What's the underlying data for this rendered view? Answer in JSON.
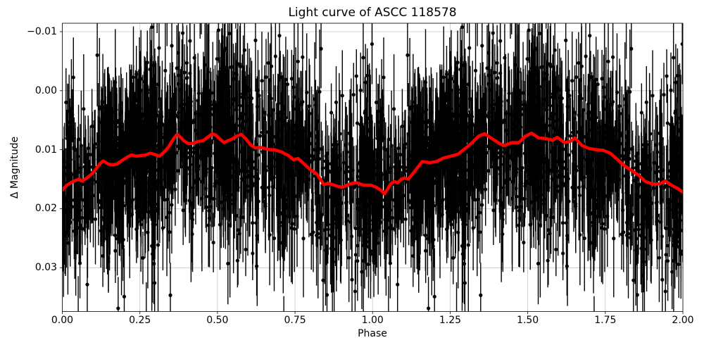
{
  "chart_data": {
    "type": "scatter",
    "title": "Light curve of ASCC 118578",
    "xlabel": "Phase",
    "ylabel": "Δ Magnitude",
    "x_ticks": [
      "0.00",
      "0.25",
      "0.50",
      "0.75",
      "1.00",
      "1.25",
      "1.50",
      "1.75",
      "2.00"
    ],
    "x_tick_values": [
      0,
      0.25,
      0.5,
      0.75,
      1.0,
      1.25,
      1.5,
      1.75,
      2.0
    ],
    "y_ticks": [
      "−0.01",
      "0.00",
      "0.01",
      "0.02",
      "0.03"
    ],
    "y_tick_values": [
      -0.01,
      0.0,
      0.01,
      0.02,
      0.03
    ],
    "xlim": [
      0,
      2
    ],
    "ylim": {
      "top": -0.01143,
      "bottom": 0.03742
    },
    "y_axis_inverted": true,
    "grid": true,
    "legend": "none",
    "colors": {
      "scatter": "#000000",
      "mean_curve": "#ff0000",
      "grid": "#c6c6c6",
      "spine": "#000000",
      "background": "#ffffff",
      "text": "#000000"
    },
    "mean_curve": {
      "comment": "phase-folded running-mean light curve, duplicated over two cycles, values read from plot",
      "phase": [
        0.0,
        0.015,
        0.034,
        0.053,
        0.064,
        0.079,
        0.098,
        0.121,
        0.132,
        0.147,
        0.162,
        0.177,
        0.193,
        0.208,
        0.223,
        0.238,
        0.253,
        0.268,
        0.283,
        0.298,
        0.313,
        0.328,
        0.343,
        0.359,
        0.37,
        0.381,
        0.392,
        0.407,
        0.422,
        0.438,
        0.453,
        0.468,
        0.483,
        0.494,
        0.506,
        0.521,
        0.532,
        0.547,
        0.562,
        0.577,
        0.592,
        0.607,
        0.623,
        0.638,
        0.653,
        0.668,
        0.684,
        0.707,
        0.729,
        0.745,
        0.76,
        0.775,
        0.797,
        0.82,
        0.843,
        0.858,
        0.881,
        0.903,
        0.926,
        0.949,
        0.971,
        0.994,
        1.013,
        1.03,
        1.038,
        1.047,
        1.058,
        1.07,
        1.081,
        1.092,
        1.104,
        1.115,
        1.138,
        1.16,
        1.183,
        1.206,
        1.229,
        1.252,
        1.274,
        1.296,
        1.319,
        1.342,
        1.361,
        1.387,
        1.41,
        1.425,
        1.448,
        1.471,
        1.493,
        1.512,
        1.535,
        1.557,
        1.58,
        1.595,
        1.618,
        1.637,
        1.652,
        1.675,
        1.698,
        1.72,
        1.743,
        1.766,
        1.788,
        1.811,
        1.834,
        1.857,
        1.879,
        1.902,
        1.925,
        1.943,
        1.966,
        1.984,
        2.0
      ],
      "dmag": [
        0.0168,
        0.016,
        0.0154,
        0.015,
        0.0153,
        0.0148,
        0.014,
        0.0124,
        0.0119,
        0.0124,
        0.0126,
        0.0124,
        0.0118,
        0.0113,
        0.0109,
        0.0111,
        0.011,
        0.0109,
        0.0106,
        0.0108,
        0.0111,
        0.0104,
        0.0095,
        0.0081,
        0.0074,
        0.0079,
        0.0085,
        0.009,
        0.0089,
        0.0086,
        0.0085,
        0.0079,
        0.0073,
        0.0075,
        0.0081,
        0.0088,
        0.0085,
        0.0082,
        0.0077,
        0.0074,
        0.0082,
        0.0092,
        0.0097,
        0.0096,
        0.0098,
        0.01,
        0.01,
        0.0104,
        0.011,
        0.0117,
        0.0115,
        0.0122,
        0.0133,
        0.0141,
        0.0159,
        0.0157,
        0.0161,
        0.0164,
        0.0158,
        0.0156,
        0.016,
        0.016,
        0.0164,
        0.017,
        0.0175,
        0.0168,
        0.0158,
        0.0154,
        0.0156,
        0.015,
        0.0148,
        0.015,
        0.0135,
        0.012,
        0.0122,
        0.012,
        0.0114,
        0.0111,
        0.0108,
        0.0099,
        0.0089,
        0.0077,
        0.0073,
        0.0082,
        0.009,
        0.0093,
        0.0088,
        0.0088,
        0.0077,
        0.0072,
        0.008,
        0.0081,
        0.0084,
        0.0079,
        0.0088,
        0.0086,
        0.008,
        0.0093,
        0.0098,
        0.01,
        0.0101,
        0.0106,
        0.0116,
        0.0127,
        0.0135,
        0.0143,
        0.0154,
        0.0158,
        0.0158,
        0.0153,
        0.0161,
        0.0166,
        0.0172
      ],
      "line_width": 4.5
    },
    "scatter_cloud": {
      "comment": "dense black errorbar points centered on mean curve; each point plotted at phase and phase+1; regenerated procedurally from these parameters",
      "n_unique": 1500,
      "duplicate_offset": 1.0,
      "sigma_core": 0.0062,
      "sigma_tail": 0.012,
      "tail_fraction": 0.15,
      "err_base": 0.0042,
      "err_spread": 0.0032,
      "cluster_fraction": 0.45,
      "n_clusters": 26,
      "cluster_sigma": 0.013,
      "seed": 7,
      "marker_radius": 2.6,
      "elinewidth": 1.4
    }
  }
}
